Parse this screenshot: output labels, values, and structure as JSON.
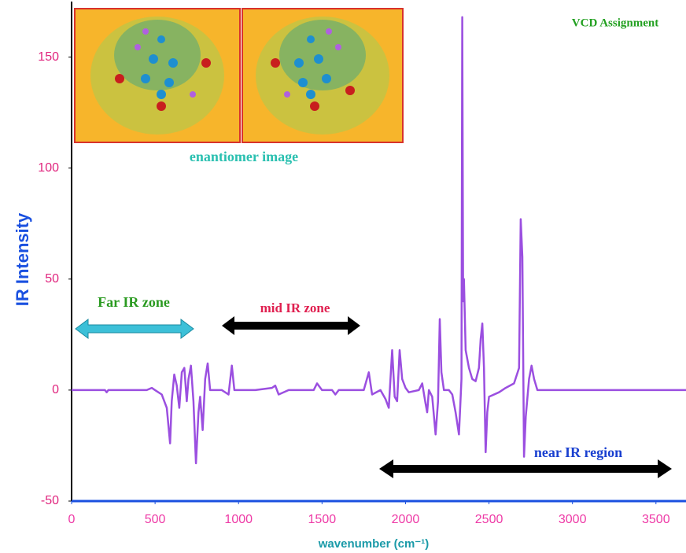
{
  "chart_data": {
    "type": "line",
    "title": "VCD Assignment",
    "x_label": "wavenumber (cm⁻¹)",
    "y_label": "IR Intensity",
    "annotations": [
      "enantiomer image",
      "Far IR zone",
      "mid IR zone",
      "near IR region"
    ],
    "color": "#9b4fe0",
    "x": [
      0,
      200,
      210,
      220,
      450,
      480,
      500,
      540,
      570,
      590,
      600,
      615,
      630,
      645,
      660,
      675,
      690,
      700,
      715,
      730,
      745,
      760,
      770,
      785,
      800,
      815,
      830,
      900,
      940,
      960,
      975,
      1100,
      1200,
      1220,
      1240,
      1300,
      1450,
      1470,
      1500,
      1560,
      1580,
      1600,
      1750,
      1780,
      1800,
      1850,
      1880,
      1900,
      1920,
      1935,
      1950,
      1965,
      1980,
      2000,
      2020,
      2080,
      2100,
      2120,
      2130,
      2140,
      2160,
      2180,
      2195,
      2205,
      2215,
      2230,
      2260,
      2280,
      2300,
      2320,
      2335,
      2340,
      2345,
      2350,
      2360,
      2380,
      2400,
      2420,
      2440,
      2450,
      2460,
      2470,
      2480,
      2490,
      2500,
      2560,
      2600,
      2650,
      2680,
      2690,
      2700,
      2710,
      2720,
      2740,
      2755,
      2770,
      2790,
      3680
    ],
    "values": [
      0,
      0,
      -1,
      0,
      0,
      1,
      0,
      -2,
      -8,
      -24,
      -5,
      7,
      2,
      -8,
      8,
      10,
      -5,
      5,
      11,
      -5,
      -33,
      -10,
      -3,
      -18,
      5,
      12,
      0,
      0,
      -2,
      11,
      0,
      0,
      1,
      2,
      -2,
      0,
      0,
      3,
      0,
      0,
      -2,
      0,
      0,
      8,
      -2,
      0,
      -4,
      -8,
      18,
      -3,
      -5,
      18,
      5,
      1,
      -1,
      0,
      3,
      -6,
      -10,
      0,
      -3,
      -20,
      -5,
      32,
      8,
      0,
      0,
      -2,
      -10,
      -20,
      5,
      168,
      40,
      50,
      18,
      10,
      5,
      4,
      10,
      23,
      30,
      10,
      -28,
      -10,
      -3,
      -1,
      1,
      3,
      10,
      77,
      60,
      -30,
      -12,
      5,
      11,
      5,
      0,
      0
    ],
    "xlim": [
      0,
      3680
    ],
    "ylim": [
      -50,
      175
    ],
    "xticks": [
      0,
      500,
      1000,
      1500,
      2000,
      2500,
      3000,
      3500
    ],
    "yticks": [
      -50,
      0,
      50,
      100,
      150
    ]
  }
}
